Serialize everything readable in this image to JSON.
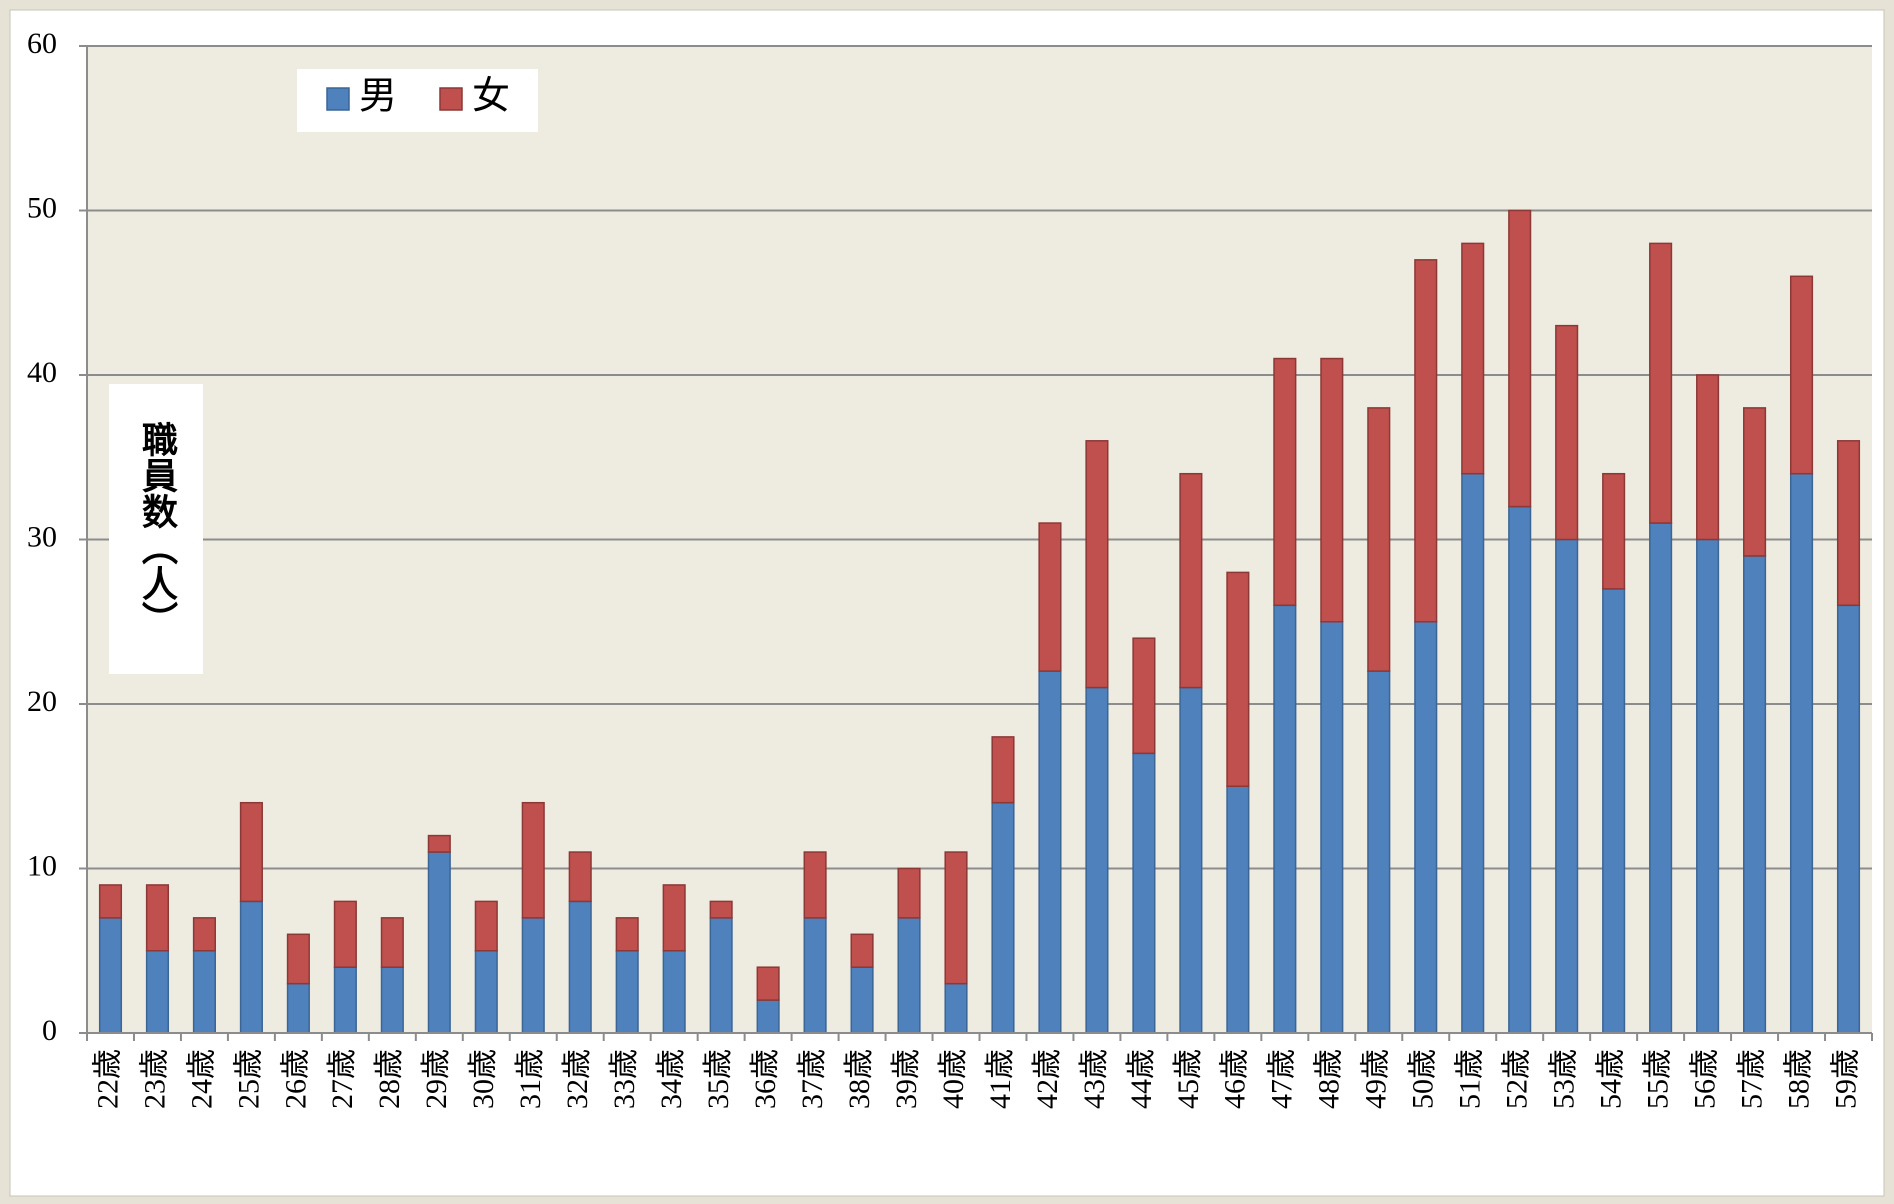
{
  "chart_data": {
    "type": "stacked_bar",
    "y_label": "職員数（人）",
    "categories": [
      "22歳",
      "23歳",
      "24歳",
      "25歳",
      "26歳",
      "27歳",
      "28歳",
      "29歳",
      "30歳",
      "31歳",
      "32歳",
      "33歳",
      "34歳",
      "35歳",
      "36歳",
      "37歳",
      "38歳",
      "39歳",
      "40歳",
      "41歳",
      "42歳",
      "43歳",
      "44歳",
      "45歳",
      "46歳",
      "47歳",
      "48歳",
      "49歳",
      "50歳",
      "51歳",
      "52歳",
      "53歳",
      "54歳",
      "55歳",
      "56歳",
      "57歳",
      "58歳",
      "59歳"
    ],
    "series": [
      {
        "name": "男",
        "color": "#4f81bd",
        "values": [
          7,
          5,
          5,
          8,
          3,
          4,
          4,
          11,
          5,
          7,
          8,
          5,
          5,
          7,
          2,
          7,
          4,
          7,
          3,
          14,
          22,
          21,
          17,
          21,
          15,
          26,
          25,
          22,
          25,
          34,
          32,
          30,
          27,
          31,
          30,
          29,
          34,
          26
        ]
      },
      {
        "name": "女",
        "color": "#c0504d",
        "values": [
          2,
          4,
          2,
          6,
          3,
          4,
          3,
          1,
          3,
          7,
          3,
          2,
          4,
          1,
          2,
          4,
          2,
          3,
          8,
          4,
          9,
          15,
          7,
          13,
          13,
          15,
          16,
          16,
          22,
          14,
          18,
          13,
          7,
          17,
          10,
          9,
          12,
          10
        ]
      }
    ],
    "ylim": [
      0,
      60
    ],
    "yticks": [
      0,
      10,
      20,
      30,
      40,
      50,
      60
    ],
    "grid": true,
    "legend": "top-left"
  }
}
